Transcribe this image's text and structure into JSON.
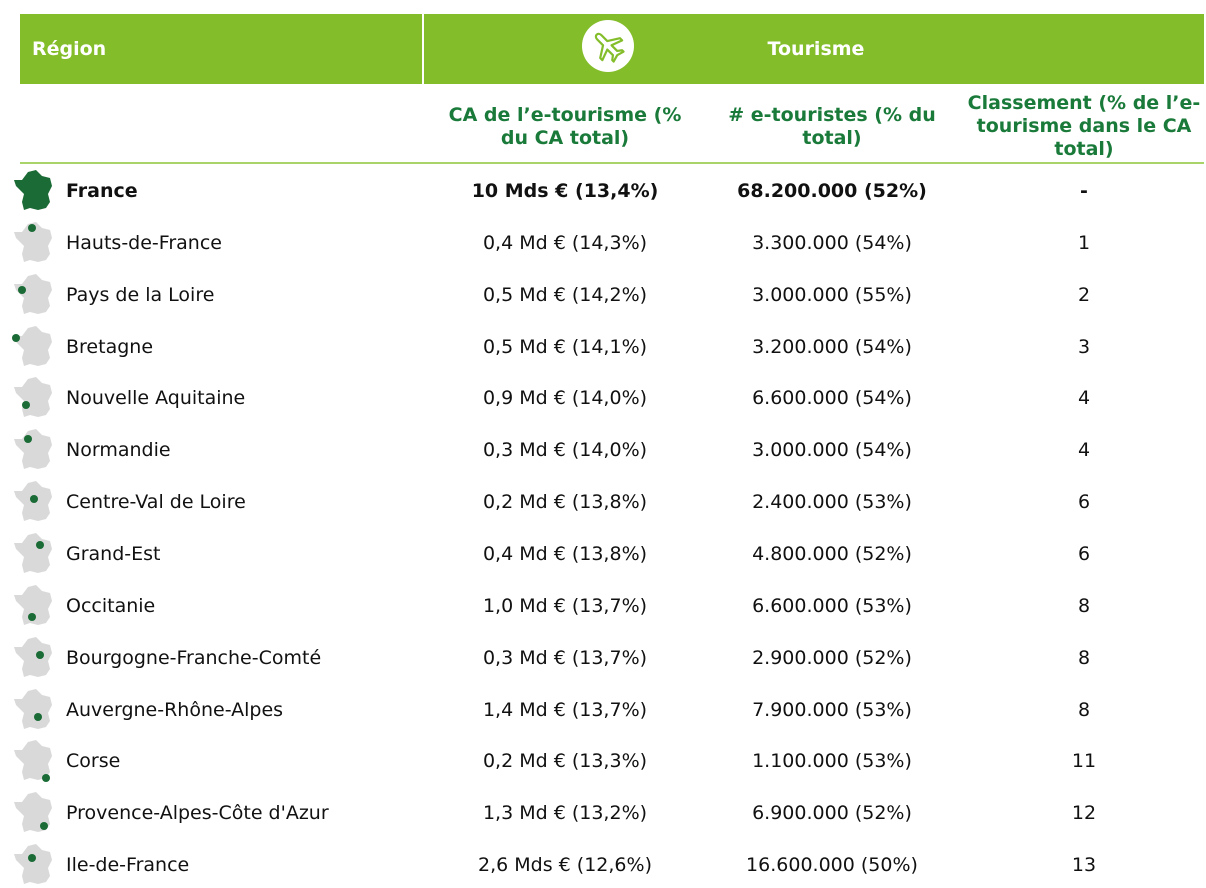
{
  "header": {
    "region": "Région",
    "group": "Tourisme",
    "columns": [
      "CA de l’e-tourisme (% du CA total)",
      "# e-touristes (% du total)",
      "Classement (% de l’e-tourisme dans le CA total)"
    ]
  },
  "table": {
    "rows": [
      [
        "France",
        "10 Mds € (13,4%)",
        "68.200.000 (52%)",
        "-"
      ],
      [
        "Hauts-de-France",
        "0,4 Md € (14,3%)",
        "3.300.000 (54%)",
        "1"
      ],
      [
        "Pays de la Loire",
        "0,5 Md € (14,2%)",
        "3.000.000 (55%)",
        "2"
      ],
      [
        "Bretagne",
        "0,5 Md € (14,1%)",
        "3.200.000 (54%)",
        "3"
      ],
      [
        "Nouvelle Aquitaine",
        "0,9 Md € (14,0%)",
        "6.600.000 (54%)",
        "4"
      ],
      [
        "Normandie",
        "0,3 Md € (14,0%)",
        "3.000.000 (54%)",
        "4"
      ],
      [
        "Centre-Val de Loire",
        "0,2 Md € (13,8%)",
        "2.400.000 (53%)",
        "6"
      ],
      [
        "Grand-Est",
        "0,4 Md € (13,8%)",
        "4.800.000 (52%)",
        "6"
      ],
      [
        "Occitanie",
        "1,0 Md € (13,7%)",
        "6.600.000 (53%)",
        "8"
      ],
      [
        "Bourgogne-Franche-Comté",
        "0,3 Md € (13,7%)",
        "2.900.000 (52%)",
        "8"
      ],
      [
        "Auvergne-Rhône-Alpes",
        "1,4 Md € (13,7%)",
        "7.900.000 (53%)",
        "8"
      ],
      [
        "Corse",
        "0,2 Md € (13,3%)",
        "1.100.000 (53%)",
        "11"
      ],
      [
        "Provence-Alpes-Côte d'Azur",
        "1,3 Md € (13,2%)",
        "6.900.000 (52%)",
        "12"
      ],
      [
        "Ile-de-France",
        "2,6 Mds € (12,6%)",
        "16.600.000 (50%)",
        "13"
      ]
    ]
  }
}
